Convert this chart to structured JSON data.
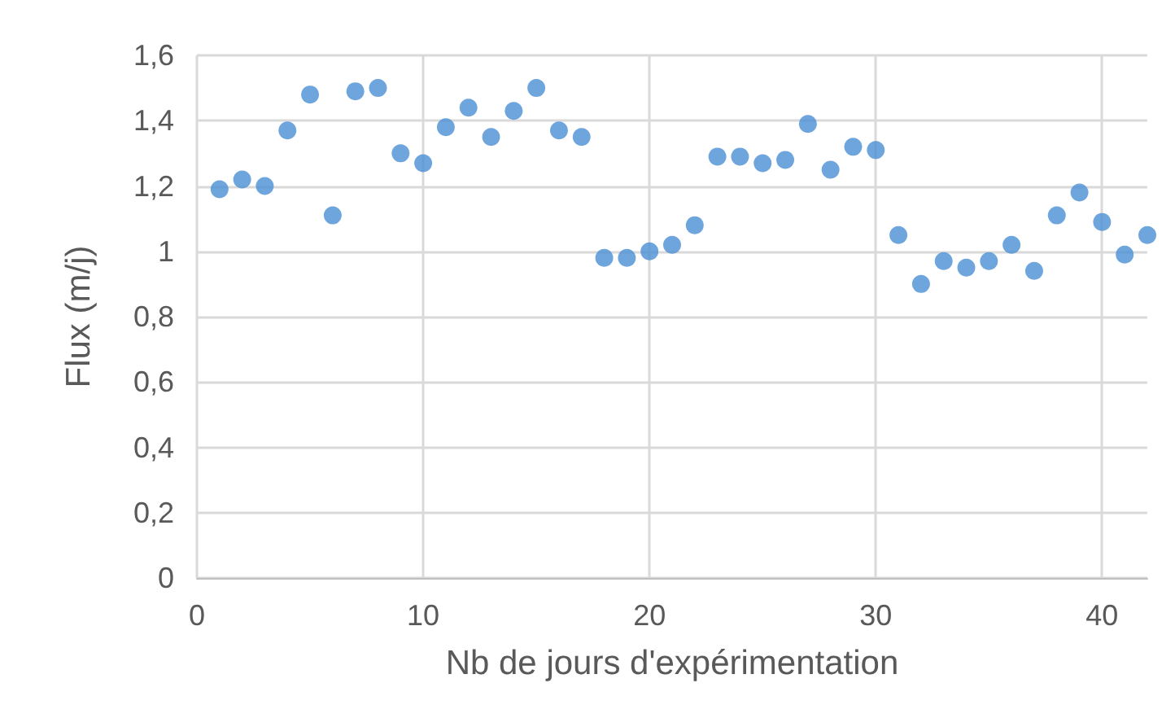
{
  "chart_data": {
    "type": "scatter",
    "xlabel": "Nb de jours d'expérimentation",
    "ylabel": "Flux (m/j)",
    "x": [
      1,
      2,
      3,
      4,
      5,
      6,
      7,
      8,
      9,
      10,
      11,
      12,
      13,
      14,
      15,
      16,
      17,
      18,
      19,
      20,
      21,
      22,
      23,
      24,
      25,
      26,
      27,
      28,
      29,
      30,
      31,
      32,
      33,
      34,
      35,
      36,
      37,
      38,
      39,
      40,
      41,
      42
    ],
    "series": [
      {
        "color": "#4a8fd4",
        "values": [
          1.19,
          1.22,
          1.2,
          1.37,
          1.48,
          1.11,
          1.49,
          1.5,
          1.3,
          1.27,
          1.38,
          1.44,
          1.35,
          1.43,
          1.5,
          1.37,
          1.35,
          0.98,
          0.98,
          1.0,
          1.02,
          1.08,
          1.29,
          1.29,
          1.27,
          1.28,
          1.39,
          1.25,
          1.32,
          1.31,
          1.05,
          0.9,
          0.97,
          0.95,
          0.97,
          1.02,
          0.94,
          1.11,
          1.18,
          1.09,
          0.99,
          1.05
        ]
      }
    ],
    "xlim": [
      0,
      42
    ],
    "xticks": [
      0,
      10,
      20,
      30,
      40
    ],
    "ylim": [
      0,
      1.6
    ],
    "yticks": [
      0,
      {
        "value": 0.2,
        "label": "0,2"
      },
      {
        "value": 0.4,
        "label": "0,4"
      },
      {
        "value": 0.6,
        "label": "0,6"
      },
      {
        "value": 0.8,
        "label": "0,8"
      },
      1,
      {
        "value": 1.2,
        "label": "1,2"
      },
      {
        "value": 1.4,
        "label": "1,4"
      },
      {
        "value": 1.6,
        "label": "1,6"
      }
    ],
    "grid": true,
    "marker": "circle"
  }
}
